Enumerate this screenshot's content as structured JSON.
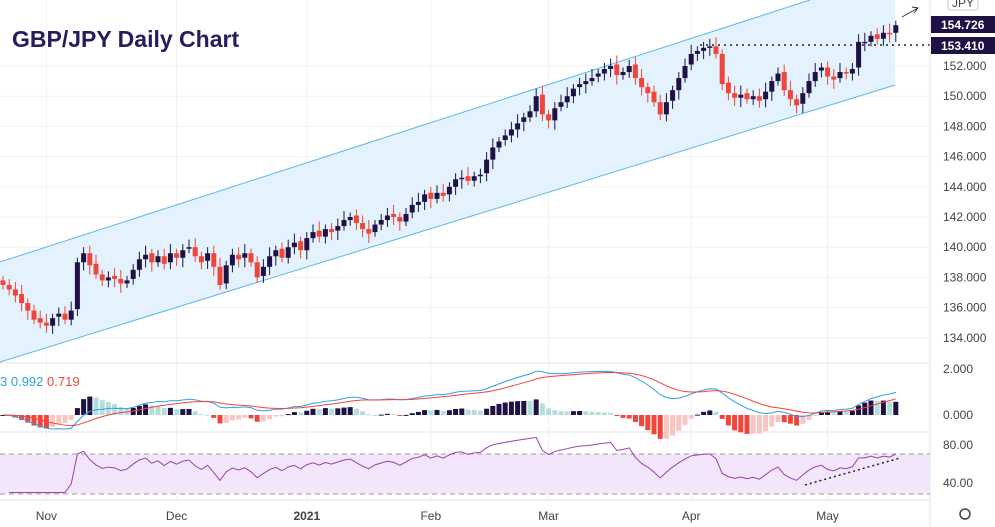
{
  "title": "GBP/JPY Daily Chart",
  "currency": "JPY",
  "colors": {
    "up": "#1e1245",
    "down": "#f0453a",
    "channel": "#5bb8e8",
    "channel_fill": "#e3f2fc",
    "macd": "#2f9ee8",
    "signal": "#f0453a",
    "rsi": "#9c3fb0",
    "rsi_fill": "#f3e6fb"
  },
  "chart_data": {
    "type": "candlestick",
    "title": "GBP/JPY Daily Chart",
    "price_ticks": [
      "134.000",
      "136.000",
      "138.000",
      "140.000",
      "142.000",
      "144.000",
      "146.000",
      "148.000",
      "150.000",
      "152.000"
    ],
    "price_tick_values": [
      134,
      136,
      138,
      140,
      142,
      144,
      146,
      148,
      150,
      152
    ],
    "last_price_label": "154.726",
    "level_label": "153.410",
    "level_value": 153.41,
    "x_labels": [
      "Nov",
      "Dec",
      "2021",
      "Feb",
      "Mar",
      "Apr",
      "May"
    ],
    "x_label_index": [
      7,
      28,
      49,
      69,
      88,
      111,
      133
    ],
    "closes": [
      137.5,
      137.2,
      136.8,
      136.3,
      135.8,
      135.2,
      135.0,
      134.8,
      135.3,
      135.6,
      135.2,
      135.8,
      139.0,
      139.6,
      138.8,
      138.2,
      137.8,
      138.0,
      137.9,
      137.6,
      137.8,
      138.5,
      139.2,
      139.5,
      139.0,
      139.4,
      138.9,
      139.6,
      139.3,
      139.8,
      140.0,
      139.4,
      139.0,
      139.6,
      138.7,
      137.5,
      138.8,
      139.5,
      139.2,
      139.6,
      139.0,
      138.0,
      138.7,
      139.4,
      139.8,
      139.3,
      140.0,
      140.3,
      139.8,
      140.6,
      141.0,
      140.7,
      141.2,
      141.0,
      141.4,
      141.8,
      142.0,
      141.6,
      141.2,
      140.9,
      141.5,
      141.8,
      142.1,
      142.0,
      141.7,
      142.2,
      142.8,
      143.0,
      143.5,
      143.2,
      143.6,
      143.4,
      144.0,
      144.5,
      144.6,
      144.4,
      144.7,
      144.8,
      145.8,
      146.6,
      147.0,
      147.4,
      147.8,
      148.2,
      148.6,
      149.0,
      150.0,
      148.8,
      148.4,
      149.2,
      149.6,
      150.0,
      150.5,
      150.8,
      151.0,
      151.2,
      151.5,
      151.8,
      152.0,
      151.4,
      151.6,
      152.0,
      151.2,
      150.6,
      150.2,
      149.6,
      148.8,
      149.6,
      150.4,
      151.2,
      152.0,
      152.8,
      153.0,
      153.2,
      153.3,
      152.8,
      150.8,
      150.2,
      149.9,
      150.1,
      149.8,
      150.0,
      149.7,
      150.3,
      151.0,
      151.5,
      150.4,
      149.8,
      149.4,
      150.2,
      151.0,
      151.6,
      151.9,
      151.3,
      151.1,
      151.6,
      151.5,
      151.8,
      153.6,
      153.6,
      154.0,
      153.8,
      154.2,
      154.1,
      154.7
    ],
    "macd": {
      "label_prefix": "3",
      "macd_value": "0.992",
      "signal_value": "0.719",
      "ticks": [
        "2.000",
        "0.000"
      ]
    },
    "rsi": {
      "ticks": [
        "80.00",
        "40.00"
      ],
      "upper": 70,
      "lower": 30
    }
  }
}
